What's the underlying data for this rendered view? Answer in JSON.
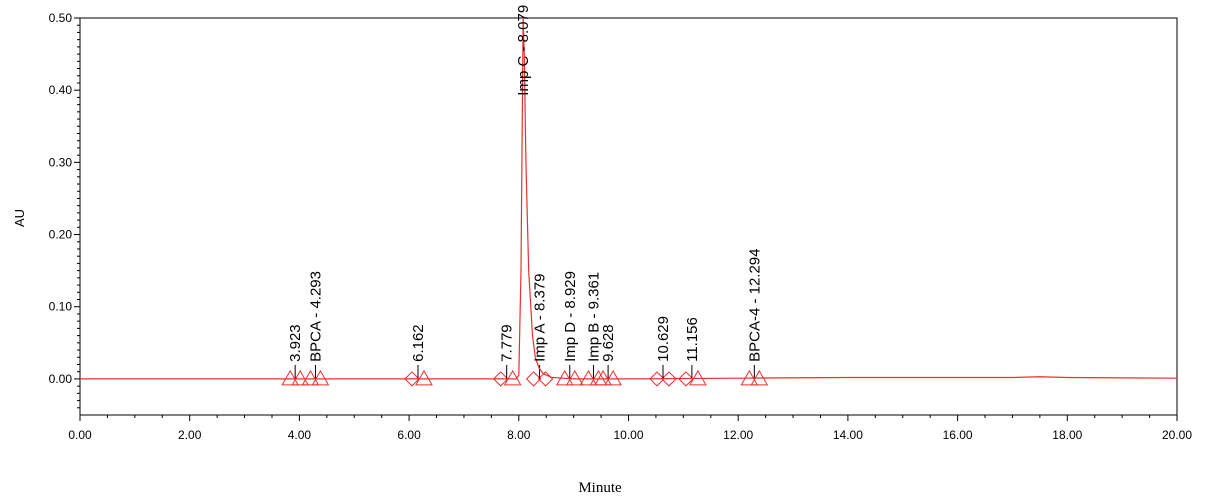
{
  "chart_data": {
    "type": "line",
    "xlabel": "Minute",
    "ylabel": "AU",
    "xlim": [
      0,
      20
    ],
    "ylim": [
      -0.05,
      0.5
    ],
    "x_ticks": [
      "0.00",
      "2.00",
      "4.00",
      "6.00",
      "8.00",
      "10.00",
      "12.00",
      "14.00",
      "16.00",
      "18.00",
      "20.00"
    ],
    "y_ticks": [
      "0.00",
      "0.10",
      "0.20",
      "0.30",
      "0.40",
      "0.50"
    ],
    "grid": false,
    "line_color": "#e8302e",
    "series": [
      {
        "x": [
          0,
          2,
          3.9,
          4.3,
          6.16,
          7.78,
          7.95,
          8.0,
          8.04,
          8.079,
          8.1,
          8.13,
          8.18,
          8.25,
          8.3,
          8.37,
          8.45,
          8.6,
          9.0,
          10.0,
          12.0,
          14.0,
          16.0,
          17.0,
          17.5,
          18.0,
          20.0
        ],
        "y": [
          0.0,
          0.0,
          0.0,
          0.0,
          0.0,
          0.0,
          0.0,
          0.005,
          0.15,
          0.5,
          0.45,
          0.3,
          0.15,
          0.06,
          0.03,
          0.015,
          0.007,
          0.002,
          0.0,
          0.0,
          0.001,
          0.002,
          0.002,
          0.002,
          0.003,
          0.002,
          0.001
        ]
      }
    ],
    "peaks": [
      {
        "time": 3.923,
        "label": "3.923",
        "marker": "triangle"
      },
      {
        "time": 4.293,
        "label": "BPCA - 4.293",
        "marker": "triangle"
      },
      {
        "time": 6.162,
        "label": "6.162",
        "marker": "diamond-triangle"
      },
      {
        "time": 7.779,
        "label": "7.779",
        "marker": "diamond-triangle"
      },
      {
        "time": 8.079,
        "label": "Imp C - 8.079",
        "marker": "none"
      },
      {
        "time": 8.379,
        "label": "Imp A - 8.379",
        "marker": "diamond"
      },
      {
        "time": 8.929,
        "label": "Imp D - 8.929",
        "marker": "triangle"
      },
      {
        "time": 9.361,
        "label": "Imp B - 9.361",
        "marker": "triangle"
      },
      {
        "time": 9.628,
        "label": "9.628",
        "marker": "triangle"
      },
      {
        "time": 10.629,
        "label": "10.629",
        "marker": "diamond"
      },
      {
        "time": 11.156,
        "label": "11.156",
        "marker": "diamond-triangle"
      },
      {
        "time": 12.294,
        "label": "BPCA-4 - 12.294",
        "marker": "triangle"
      }
    ]
  }
}
